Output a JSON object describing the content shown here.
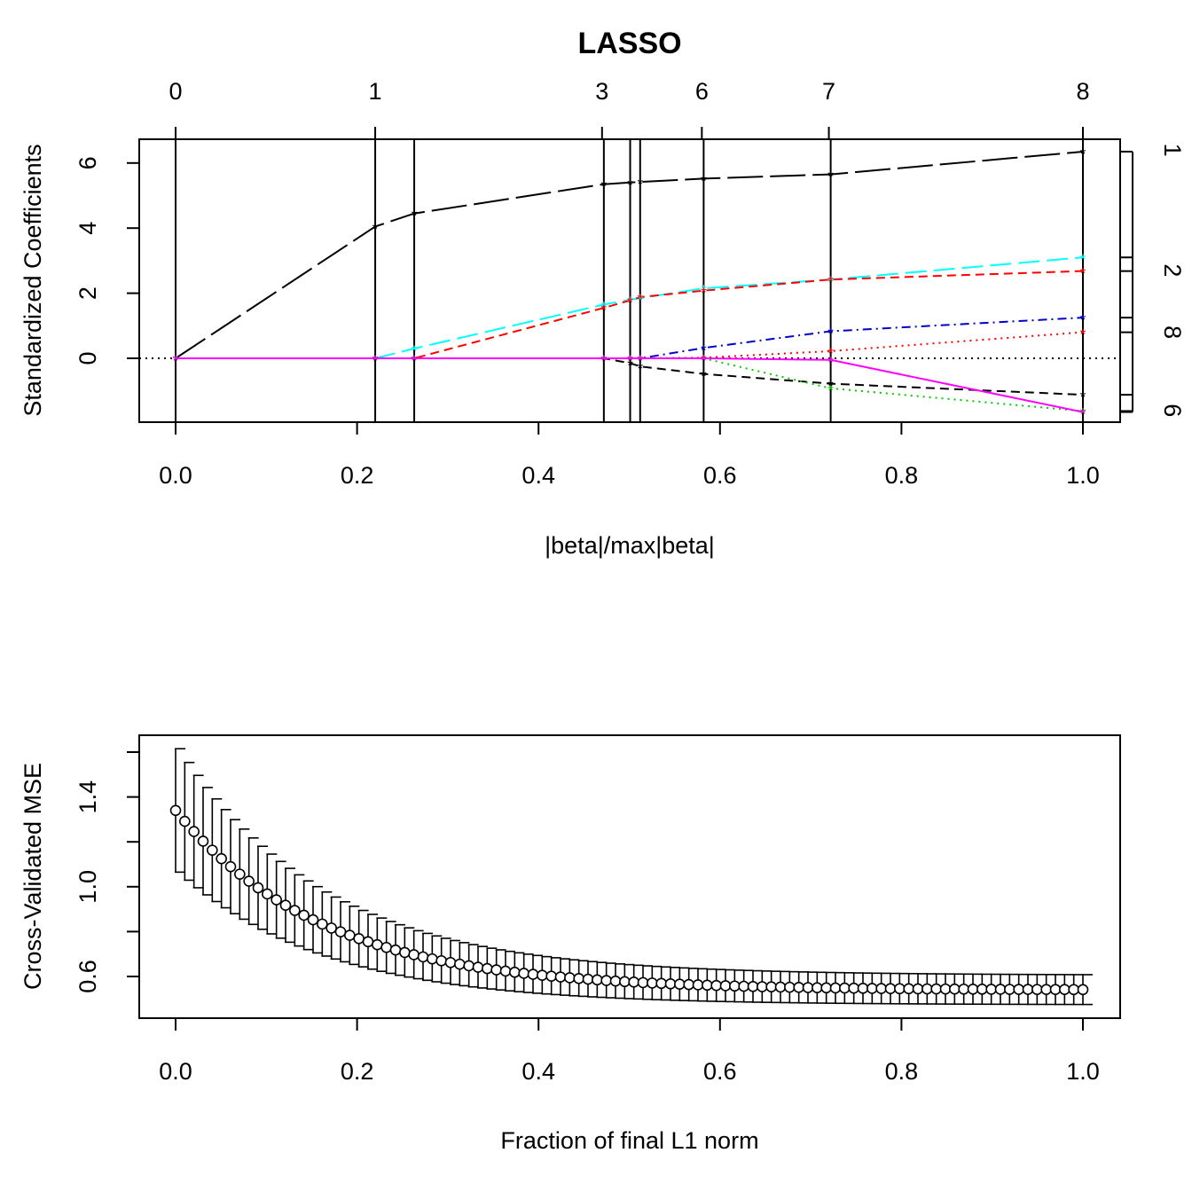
{
  "chart_data": [
    {
      "type": "line",
      "title": "LASSO",
      "xlabel": "|beta|/max|beta|",
      "ylabel": "Standardized Coefficients",
      "xlim": [
        0,
        1
      ],
      "ylim": [
        -1.95,
        6.75
      ],
      "x_ticks": [
        "0.0",
        "0.2",
        "0.4",
        "0.6",
        "0.8",
        "1.0"
      ],
      "y_ticks": [
        "0",
        "2",
        "4",
        "6"
      ],
      "top_axis_labels": [
        "0",
        "1",
        "3",
        "6",
        "7",
        "8"
      ],
      "top_axis_positions": [
        0.0,
        0.22,
        0.47,
        0.58,
        0.72,
        1.0
      ],
      "right_axis_labels": [
        "1",
        "2",
        "8",
        "6"
      ],
      "right_axis_values": [
        6.4,
        2.7,
        0.8,
        -1.6
      ],
      "zero_reference_line": true,
      "step_x": [
        0.0,
        0.22,
        0.263,
        0.472,
        0.501,
        0.512,
        0.582,
        0.722,
        1.0
      ],
      "series": [
        {
          "color": "#000000",
          "dash": "solid-dashed",
          "values": [
            0,
            4.05,
            4.45,
            5.35,
            5.4,
            5.42,
            5.52,
            5.65,
            6.35
          ]
        },
        {
          "color": "#00FFFF",
          "dash": "longdash",
          "values": [
            0,
            0,
            0.3,
            1.65,
            1.8,
            1.85,
            2.15,
            2.42,
            3.1
          ]
        },
        {
          "color": "#FF0000",
          "dash": "dashed",
          "values": [
            0,
            0,
            0,
            1.55,
            1.78,
            1.88,
            2.08,
            2.42,
            2.68
          ]
        },
        {
          "color": "#0000CD",
          "dash": "dotdash",
          "values": [
            0,
            0,
            0,
            0,
            0,
            0,
            0.32,
            0.83,
            1.25
          ]
        },
        {
          "color": "#FF0000",
          "dash": "dotted",
          "values": [
            0,
            0,
            0,
            0,
            0,
            0,
            0.02,
            0.22,
            0.8
          ]
        },
        {
          "color": "#000000",
          "dash": "dashed",
          "values": [
            0,
            0,
            0,
            0,
            -0.15,
            -0.25,
            -0.48,
            -0.78,
            -1.12
          ]
        },
        {
          "color": "#00CD00",
          "dash": "dotted",
          "values": [
            0,
            0,
            0,
            0,
            0,
            0,
            0,
            -0.92,
            -1.62
          ]
        },
        {
          "color": "#FF00FF",
          "dash": "solid",
          "values": [
            0,
            0,
            0,
            0,
            0,
            0,
            0,
            -0.05,
            -1.65
          ]
        }
      ]
    },
    {
      "type": "scatter",
      "title": "",
      "xlabel": "Fraction of final L1 norm",
      "ylabel": "Cross-Validated MSE",
      "xlim": [
        0,
        1
      ],
      "ylim": [
        0.42,
        1.68
      ],
      "x_ticks": [
        "0.0",
        "0.2",
        "0.4",
        "0.6",
        "0.8",
        "1.0"
      ],
      "y_ticks": [
        "0.6",
        "1.0",
        "1.4"
      ],
      "error_bars": true,
      "n_points": 100,
      "cv_start": 1.34,
      "cv_end": 0.54,
      "se_start": 0.275,
      "se_end": 0.066,
      "decay_rate": 6.2
    }
  ]
}
